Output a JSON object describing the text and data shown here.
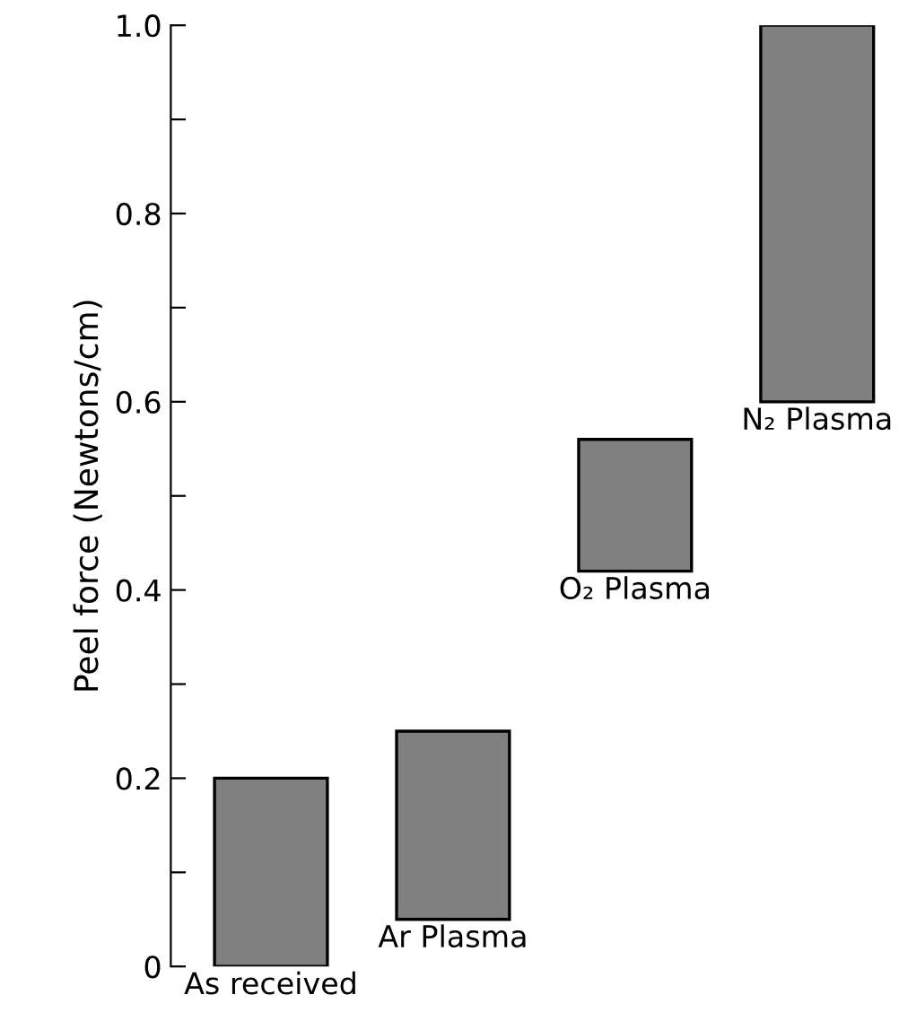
{
  "chart_data": {
    "type": "bar",
    "ylabel": "Peel force (Newtons/cm)",
    "categories": [
      null,
      null,
      null,
      null
    ],
    "values": [
      0.2,
      0.2,
      0.14,
      0.4
    ],
    "base": [
      0,
      0.05,
      0.42,
      0.6
    ],
    "color": "#808080",
    "annotations": [
      {
        "text": "As received",
        "y": 0
      },
      {
        "text": "Ar Plasma",
        "y": 0.05
      },
      {
        "text": "O₂ Plasma",
        "y": 0.42
      },
      {
        "text": "N₂ Plasma",
        "y": 0.6
      }
    ],
    "ylim": [
      0,
      1.0
    ],
    "yticks": [
      0,
      {
        "value": 0.1,
        "label": null
      },
      0.2,
      {
        "value": 0.3,
        "label": null
      },
      0.4,
      {
        "value": 0.5,
        "label": null
      },
      0.6,
      {
        "value": 0.7,
        "label": null
      },
      0.8,
      {
        "value": 0.9,
        "label": null
      },
      {
        "value": 1,
        "label": "1.0"
      }
    ],
    "grid": false,
    "legend": false
  }
}
